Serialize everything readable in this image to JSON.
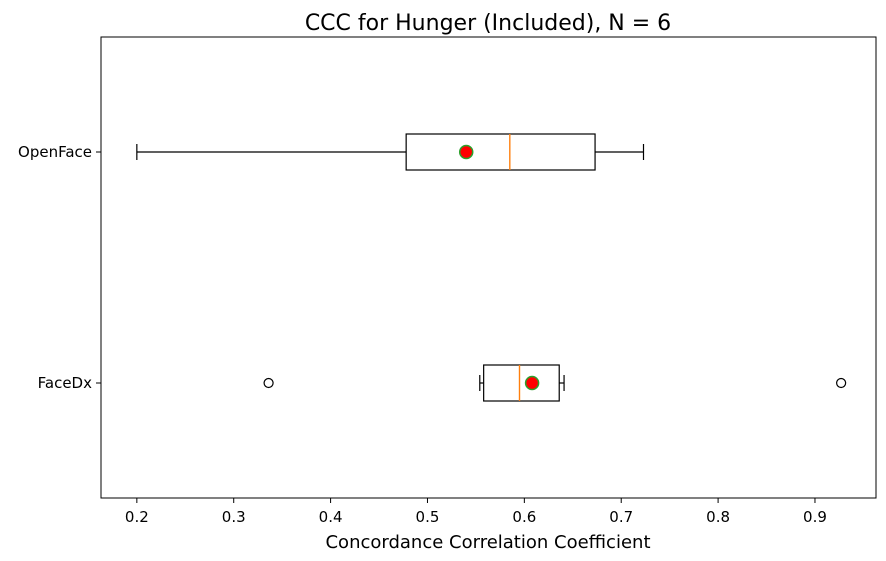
{
  "chart_data": {
    "type": "boxplot",
    "orientation": "horizontal",
    "title": "CCC for Hunger (Included), N = 6",
    "xlabel": "Concordance Correlation Coefficient",
    "ylabel": "",
    "xlim": [
      0.163,
      0.963
    ],
    "x_ticks": [
      "0.2",
      "0.3",
      "0.4",
      "0.5",
      "0.6",
      "0.7",
      "0.8",
      "0.9"
    ],
    "x_tick_values": [
      0.2,
      0.3,
      0.4,
      0.5,
      0.6,
      0.7,
      0.8,
      0.9
    ],
    "categories": [
      "OpenFace",
      "FaceDx"
    ],
    "boxes": [
      {
        "label": "OpenFace",
        "whisker_low": 0.2,
        "q1": 0.478,
        "median": 0.585,
        "q3": 0.673,
        "whisker_high": 0.723,
        "mean": 0.54,
        "outliers": []
      },
      {
        "label": "FaceDx",
        "whisker_low": 0.554,
        "q1": 0.558,
        "median": 0.595,
        "q3": 0.636,
        "whisker_high": 0.641,
        "mean": 0.608,
        "outliers": [
          0.336,
          0.927
        ]
      }
    ],
    "grid": false,
    "colors": {
      "box": "#000000",
      "median": "#ff7f0e",
      "mean_fill": "#ff0000",
      "mean_edge": "#2ca02c",
      "outlier": "#000000"
    }
  }
}
